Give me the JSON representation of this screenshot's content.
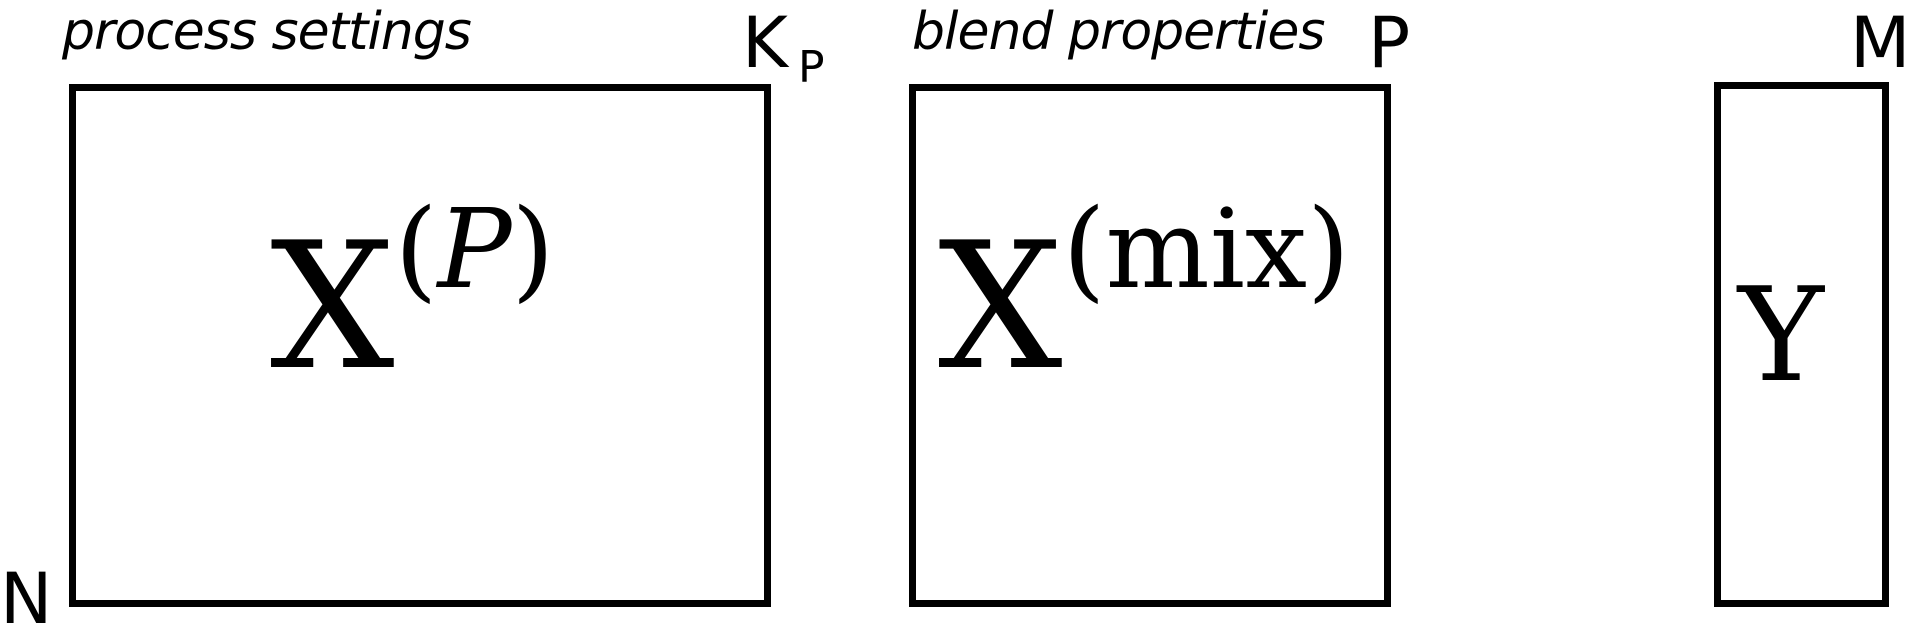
{
  "panels": [
    {
      "caption": "process settings",
      "base": "X",
      "superscript": "P",
      "col_dim": "K",
      "col_dim_sub": "P"
    },
    {
      "caption": "blend properties",
      "base": "X",
      "superscript": "mix",
      "col_dim": "P"
    },
    {
      "base": "Y",
      "col_dim": "M"
    }
  ],
  "row_dim": "N",
  "paren_open": "(",
  "paren_close": ")"
}
